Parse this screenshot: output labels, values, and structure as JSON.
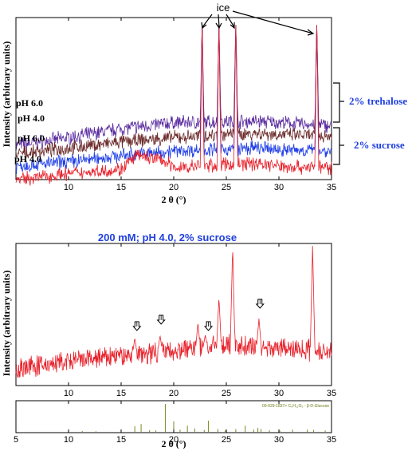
{
  "chart_data": [
    {
      "type": "line",
      "title": "",
      "xlabel": "2 θ (°)",
      "ylabel": "Intensity (arbitrary units)",
      "xlim": [
        5,
        35
      ],
      "xticks": [
        10,
        15,
        20,
        25,
        30,
        35
      ],
      "ice_label": "ice",
      "ice_peaks": [
        22.7,
        24.3,
        25.9,
        33.6
      ],
      "group_labels": [
        "2% trehalose",
        "2% sucrose"
      ],
      "colors": {
        "purple": "#5a2ca0",
        "brown": "#6b2a2a",
        "blue": "#1f3ee8",
        "red": "#e8202a",
        "group_label": "#2040e0"
      },
      "series": [
        {
          "name": "pH 6.0",
          "group": "2% trehalose",
          "color": "#5a2ca0",
          "x": [
            5,
            10,
            15,
            20,
            22.7,
            24.3,
            25.9,
            28,
            30,
            33.6,
            35
          ],
          "values": [
            1.5,
            2.0,
            2.6,
            3.0,
            9.5,
            9.5,
            9.5,
            3.1,
            3.0,
            9.5,
            2.8
          ]
        },
        {
          "name": "pH 4.0",
          "group": "2% trehalose",
          "color": "#6b2a2a",
          "x": [
            5,
            10,
            15,
            20,
            22.7,
            24.3,
            25.9,
            28,
            30,
            33.6,
            35
          ],
          "values": [
            0.9,
            1.3,
            1.7,
            2.0,
            9.5,
            9.5,
            9.5,
            2.3,
            2.2,
            9.5,
            2.1
          ]
        },
        {
          "name": "pH 6.0",
          "group": "2% sucrose",
          "color": "#1f3ee8",
          "x": [
            5,
            10,
            15,
            20,
            22.7,
            24.3,
            25.9,
            28,
            30,
            33.6,
            35
          ],
          "values": [
            0.1,
            0.4,
            0.8,
            1.1,
            9.5,
            9.5,
            9.5,
            1.3,
            1.2,
            9.5,
            1.1
          ]
        },
        {
          "name": "pH 4.0",
          "group": "2% sucrose",
          "color": "#e8202a",
          "x": [
            5,
            10,
            15,
            16.5,
            19,
            20,
            22.7,
            24.3,
            25.9,
            28,
            30,
            33.6,
            35
          ],
          "values": [
            -0.8,
            -0.4,
            -0.1,
            0.8,
            0.5,
            0.0,
            9.5,
            9.5,
            9.5,
            0.3,
            0.1,
            9.5,
            0.0
          ]
        }
      ]
    },
    {
      "type": "line",
      "title": "200 mM; pH 4.0, 2% sucrose",
      "xlabel": "",
      "ylabel": "Intensity (arbitrary units)",
      "xlim": [
        5,
        35
      ],
      "xticks": [
        10,
        15,
        20,
        25,
        30,
        35
      ],
      "arrow_positions": [
        16.5,
        18.8,
        23.3,
        28.2
      ],
      "color": "#e8202a",
      "series": [
        {
          "x": [
            5,
            10,
            15,
            16.3,
            18.7,
            20,
            22.3,
            23.0,
            24.3,
            25.6,
            27,
            28.1,
            30,
            32,
            33.2,
            35
          ],
          "values": [
            5,
            9,
            16,
            28,
            30,
            22,
            40,
            30,
            60,
            100,
            30,
            43,
            24,
            22,
            100,
            20
          ]
        }
      ]
    },
    {
      "type": "bar",
      "title": "",
      "xlabel": "2 θ (°)",
      "xlim": [
        5,
        35
      ],
      "xticks": [
        5,
        10,
        15,
        20,
        25,
        30,
        35
      ],
      "legend": "00-029-1837> C₆H₁₂O₆ - β-D-Glucose",
      "color": "#7a8a20",
      "x": [
        11.3,
        12.6,
        15.0,
        16.3,
        16.9,
        17.7,
        18.3,
        19.2,
        20.0,
        20.6,
        21.3,
        22.0,
        22.9,
        23.3,
        24.2,
        24.9,
        25.9,
        26.8,
        27.6,
        28.0,
        28.3,
        29.1,
        30.1,
        31.3,
        32.7,
        33.3,
        34.4
      ],
      "values": [
        3,
        2,
        5,
        20,
        28,
        6,
        5,
        100,
        38,
        8,
        22,
        12,
        7,
        40,
        10,
        5,
        10,
        22,
        8,
        14,
        10,
        6,
        4,
        8,
        8,
        7,
        5
      ]
    }
  ],
  "labels": {
    "top_left_pH": [
      "pH 6.0",
      "pH 4.0",
      "pH 6.0",
      "pH 4.0"
    ]
  }
}
